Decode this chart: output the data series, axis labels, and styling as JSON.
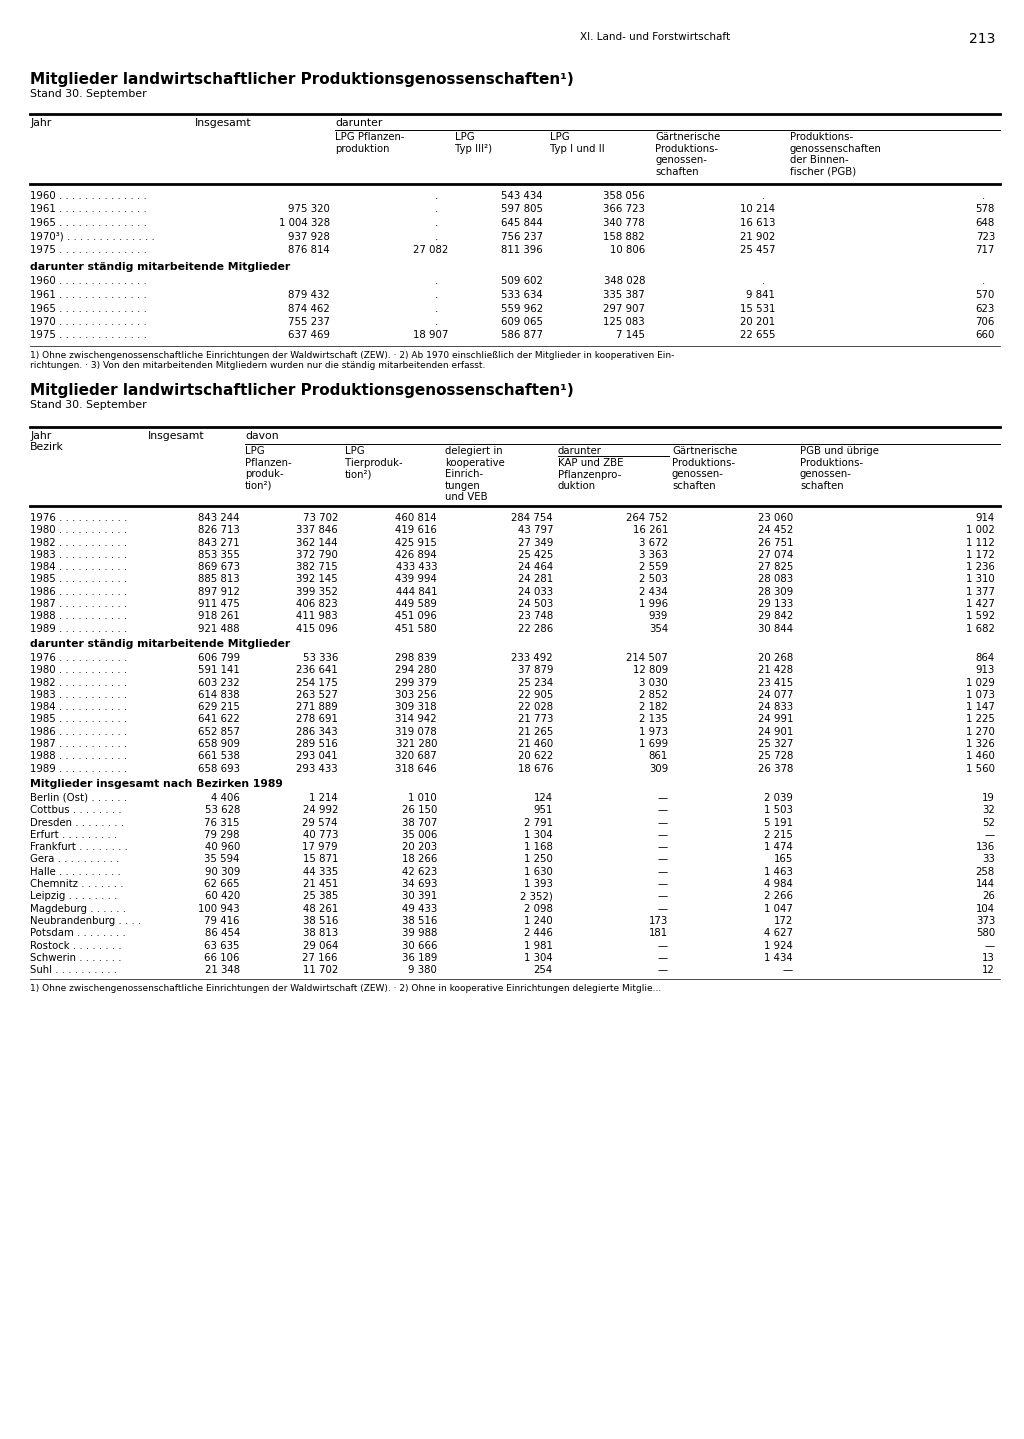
{
  "page_header_right": "XI. Land- und Forstwirtschaft",
  "page_number": "213",
  "table1_subtitle": "Stand 30. September",
  "table1_data": [
    [
      "1960 . . . . . . . . . . . . . .",
      "",
      ".",
      "543 434",
      "358 056",
      ".",
      "."
    ],
    [
      "1961 . . . . . . . . . . . . . .",
      "975 320",
      ".",
      "597 805",
      "366 723",
      "10 214",
      "578"
    ],
    [
      "1965 . . . . . . . . . . . . . .",
      "1 004 328",
      ".",
      "645 844",
      "340 778",
      "16 613",
      "648"
    ],
    [
      "1970³) . . . . . . . . . . . . . .",
      "937 928",
      ".",
      "756 237",
      "158 882",
      "21 902",
      "723"
    ],
    [
      "1975 . . . . . . . . . . . . . .",
      "876 814",
      "27 082",
      "811 396",
      "10 806",
      "25 457",
      "717"
    ]
  ],
  "table1_section2_header": "darunter ständig mitarbeitende Mitglieder",
  "table1_data2": [
    [
      "1960 . . . . . . . . . . . . . .",
      "",
      ".",
      "509 602",
      "348 028",
      ".",
      "."
    ],
    [
      "1961 . . . . . . . . . . . . . .",
      "879 432",
      ".",
      "533 634",
      "335 387",
      "9 841",
      "570"
    ],
    [
      "1965 . . . . . . . . . . . . . .",
      "874 462",
      ".",
      "559 962",
      "297 907",
      "15 531",
      "623"
    ],
    [
      "1970 . . . . . . . . . . . . . .",
      "755 237",
      ".",
      "609 065",
      "125 083",
      "20 201",
      "706"
    ],
    [
      "1975 . . . . . . . . . . . . . .",
      "637 469",
      "18 907",
      "586 877",
      "7 145",
      "22 655",
      "660"
    ]
  ],
  "table1_footnote1": "1) Ohne zwischengenossenschaftliche Einrichtungen der Waldwirtschaft (ZEW). · 2) Ab 1970 einschließlich der Mitglieder in kooperativen Ein-",
  "table1_footnote2": "richtungen. · 3) Von den mitarbeitenden Mitgliedern wurden nur die ständig mitarbeitenden erfasst.",
  "table2_subtitle": "Stand 30. September",
  "table2_data": [
    [
      "1976 . . . . . . . . . . .",
      "843 244",
      "73 702",
      "460 814",
      "284 754",
      "264 752",
      "23 060",
      "914"
    ],
    [
      "1980 . . . . . . . . . . .",
      "826 713",
      "337 846",
      "419 616",
      "43 797",
      "16 261",
      "24 452",
      "1 002"
    ],
    [
      "1982 . . . . . . . . . . .",
      "843 271",
      "362 144",
      "425 915",
      "27 349",
      "3 672",
      "26 751",
      "1 112"
    ],
    [
      "1983 . . . . . . . . . . .",
      "853 355",
      "372 790",
      "426 894",
      "25 425",
      "3 363",
      "27 074",
      "1 172"
    ],
    [
      "1984 . . . . . . . . . . .",
      "869 673",
      "382 715",
      "433 433",
      "24 464",
      "2 559",
      "27 825",
      "1 236"
    ],
    [
      "1985 . . . . . . . . . . .",
      "885 813",
      "392 145",
      "439 994",
      "24 281",
      "2 503",
      "28 083",
      "1 310"
    ],
    [
      "1986 . . . . . . . . . . .",
      "897 912",
      "399 352",
      "444 841",
      "24 033",
      "2 434",
      "28 309",
      "1 377"
    ],
    [
      "1987 . . . . . . . . . . .",
      "911 475",
      "406 823",
      "449 589",
      "24 503",
      "1 996",
      "29 133",
      "1 427"
    ],
    [
      "1988 . . . . . . . . . . .",
      "918 261",
      "411 983",
      "451 096",
      "23 748",
      "939",
      "29 842",
      "1 592"
    ],
    [
      "1989 . . . . . . . . . . .",
      "921 488",
      "415 096",
      "451 580",
      "22 286",
      "354",
      "30 844",
      "1 682"
    ]
  ],
  "table2_section2_header": "darunter ständig mitarbeitende Mitglieder",
  "table2_data2": [
    [
      "1976 . . . . . . . . . . .",
      "606 799",
      "53 336",
      "298 839",
      "233 492",
      "214 507",
      "20 268",
      "864"
    ],
    [
      "1980 . . . . . . . . . . .",
      "591 141",
      "236 641",
      "294 280",
      "37 879",
      "12 809",
      "21 428",
      "913"
    ],
    [
      "1982 . . . . . . . . . . .",
      "603 232",
      "254 175",
      "299 379",
      "25 234",
      "3 030",
      "23 415",
      "1 029"
    ],
    [
      "1983 . . . . . . . . . . .",
      "614 838",
      "263 527",
      "303 256",
      "22 905",
      "2 852",
      "24 077",
      "1 073"
    ],
    [
      "1984 . . . . . . . . . . .",
      "629 215",
      "271 889",
      "309 318",
      "22 028",
      "2 182",
      "24 833",
      "1 147"
    ],
    [
      "1985 . . . . . . . . . . .",
      "641 622",
      "278 691",
      "314 942",
      "21 773",
      "2 135",
      "24 991",
      "1 225"
    ],
    [
      "1986 . . . . . . . . . . .",
      "652 857",
      "286 343",
      "319 078",
      "21 265",
      "1 973",
      "24 901",
      "1 270"
    ],
    [
      "1987 . . . . . . . . . . .",
      "658 909",
      "289 516",
      "321 280",
      "21 460",
      "1 699",
      "25 327",
      "1 326"
    ],
    [
      "1988 . . . . . . . . . . .",
      "661 538",
      "293 041",
      "320 687",
      "20 622",
      "861",
      "25 728",
      "1 460"
    ],
    [
      "1989 . . . . . . . . . . .",
      "658 693",
      "293 433",
      "318 646",
      "18 676",
      "309",
      "26 378",
      "1 560"
    ]
  ],
  "table2_section3_header": "Mitglieder insgesamt nach Bezirken 1989",
  "table2_data3": [
    [
      "Berlin (Ost) . . . . . .",
      "4 406",
      "1 214",
      "1 010",
      "124",
      "—",
      "2 039",
      "19"
    ],
    [
      "Cottbus . . . . . . . .",
      "53 628",
      "24 992",
      "26 150",
      "951",
      "—",
      "1 503",
      "32"
    ],
    [
      "Dresden . . . . . . . .",
      "76 315",
      "29 574",
      "38 707",
      "2 791",
      "—",
      "5 191",
      "52"
    ],
    [
      "Erfurt . . . . . . . . .",
      "79 298",
      "40 773",
      "35 006",
      "1 304",
      "—",
      "2 215",
      "—"
    ],
    [
      "Frankfurt . . . . . . . .",
      "40 960",
      "17 979",
      "20 203",
      "1 168",
      "—",
      "1 474",
      "136"
    ],
    [
      "Gera . . . . . . . . . .",
      "35 594",
      "15 871",
      "18 266",
      "1 250",
      "—",
      "165",
      "33"
    ],
    [
      "Halle . . . . . . . . . .",
      "90 309",
      "44 335",
      "42 623",
      "1 630",
      "—",
      "1 463",
      "258"
    ],
    [
      "Chemnitz . . . . . . .",
      "62 665",
      "21 451",
      "34 693",
      "1 393",
      "—",
      "4 984",
      "144"
    ],
    [
      "Leipzig . . . . . . . .",
      "60 420",
      "25 385",
      "30 391",
      "2 352)",
      "—",
      "2 266",
      "26"
    ],
    [
      "Magdeburg . . . . . .",
      "100 943",
      "48 261",
      "49 433",
      "2 098",
      "—",
      "1 047",
      "104"
    ],
    [
      "Neubrandenburg . . . .",
      "79 416",
      "38 516",
      "38 516",
      "1 240",
      "173",
      "172",
      "373"
    ],
    [
      "Potsdam . . . . . . . .",
      "86 454",
      "38 813",
      "39 988",
      "2 446",
      "181",
      "4 627",
      "580"
    ],
    [
      "Rostock . . . . . . . .",
      "63 635",
      "29 064",
      "30 666",
      "1 981",
      "—",
      "1 924",
      "—"
    ],
    [
      "Schwerin . . . . . . .",
      "66 106",
      "27 166",
      "36 189",
      "1 304",
      "—",
      "1 434",
      "13"
    ],
    [
      "Suhl . . . . . . . . . .",
      "21 348",
      "11 702",
      "9 380",
      "254",
      "—",
      "—",
      "12"
    ]
  ],
  "table2_footnote": "1) Ohne zwischengenossenschaftliche Einrichtungen der Waldwirtschaft (ZEW). · 2) Ohne in kooperative Einrichtungen delegierte Mitglie..."
}
